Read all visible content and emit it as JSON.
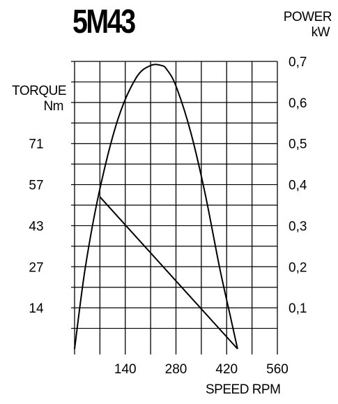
{
  "title": "5M43",
  "chart_data": {
    "type": "line",
    "title": "5M43",
    "xlabel": "SPEED RPM",
    "x_ticks": [
      0,
      70,
      140,
      210,
      280,
      350,
      420,
      490,
      560
    ],
    "x_tick_labels": [
      "",
      "",
      "140",
      "",
      "280",
      "",
      "420",
      "",
      "560"
    ],
    "xlim": [
      0,
      560
    ],
    "y_left": {
      "label_line1": "TORQUE",
      "label_line2": "Nm",
      "ticks": [
        14,
        27,
        43,
        57,
        71
      ],
      "tick_labels": [
        "14",
        "27",
        "43",
        "57",
        "71"
      ]
    },
    "y_right": {
      "label_line1": "POWER",
      "label_line2": "kW",
      "ylim": [
        0,
        0.7
      ],
      "ticks": [
        0.1,
        0.2,
        0.3,
        0.4,
        0.5,
        0.6,
        0.7
      ],
      "tick_labels": [
        "0,1",
        "0,2",
        "0,3",
        "0,4",
        "0,5",
        "0,6",
        "0,7"
      ]
    },
    "grid": true,
    "series": [
      {
        "kind": "power-curve",
        "axis": "right",
        "x": [
          0,
          30,
          70,
          120,
          170,
          210,
          240,
          255,
          280,
          320,
          360,
          400,
          430,
          450
        ],
        "y": [
          0.0,
          0.2,
          0.39,
          0.56,
          0.66,
          0.69,
          0.69,
          0.68,
          0.64,
          0.53,
          0.38,
          0.2,
          0.08,
          0.0
        ]
      },
      {
        "kind": "torque-line",
        "axis": "right",
        "x": [
          70,
          450
        ],
        "y": [
          0.37,
          0.0
        ]
      }
    ]
  }
}
